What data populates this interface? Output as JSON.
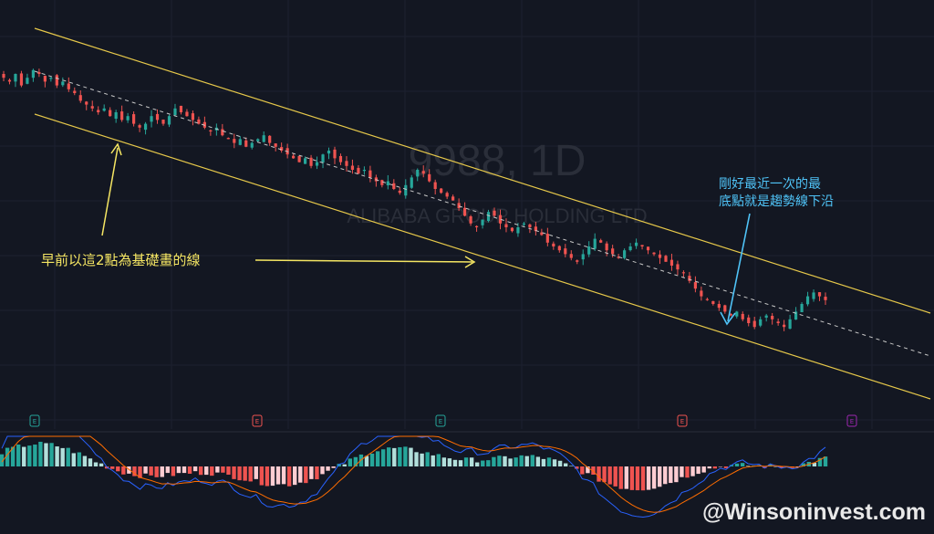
{
  "watermark": {
    "symbol": "9988, 1D",
    "company": "ALIBABA GROUP HOLDING LTD"
  },
  "annotations": {
    "left_text": "早前以這2點為基礎畫的線",
    "right_text_line1": "剛好最近一次的最",
    "right_text_line2": "底點就是趨勢線下沿"
  },
  "brand": "@Winsoninvest.com",
  "event_markers": [
    {
      "label": "E",
      "color": "#26a69a"
    },
    {
      "label": "E",
      "color": "#ef5350"
    },
    {
      "label": "E",
      "color": "#26a69a"
    },
    {
      "label": "E",
      "color": "#ef5350"
    },
    {
      "label": "E",
      "color": "#9c27b0"
    }
  ],
  "colors": {
    "background": "#131722",
    "up": "#26a69a",
    "down": "#ef5350",
    "channel": "#e6c84a",
    "midline": "#c8c8c8",
    "callout_left": "#f5e663",
    "callout_right": "#4fc3f7",
    "macd_line": "#2962ff",
    "signal_line": "#ff6d00"
  },
  "chart_data": {
    "type": "candlestick",
    "symbol": "9988",
    "interval": "1D",
    "close_trend": [
      94,
      93,
      95,
      92,
      94,
      96,
      95,
      93,
      94,
      92,
      93,
      91,
      90,
      88,
      87,
      86,
      85,
      86,
      84,
      85,
      83,
      84,
      82,
      81,
      82,
      84,
      83,
      82,
      84,
      86,
      85,
      84,
      83,
      82,
      81,
      80,
      81,
      79,
      78,
      77,
      78,
      76,
      77,
      78,
      79,
      77,
      76,
      75,
      74,
      73,
      72,
      73,
      71,
      72,
      74,
      75,
      73,
      72,
      71,
      70,
      69,
      70,
      68,
      67,
      66,
      67,
      65,
      64,
      66,
      68,
      70,
      69,
      67,
      65,
      64,
      63,
      62,
      60,
      58,
      56,
      55,
      57,
      59,
      58,
      56,
      55,
      54,
      55,
      56,
      55,
      54,
      53,
      51,
      50,
      49,
      48,
      47,
      46,
      48,
      50,
      52,
      51,
      49,
      48,
      47,
      49,
      50,
      51,
      50,
      49,
      48,
      47,
      46,
      45,
      44,
      43,
      41,
      39,
      37,
      36,
      35,
      34,
      33,
      32,
      33,
      31,
      30,
      29,
      31,
      32,
      31,
      30,
      29,
      31,
      33,
      35,
      37,
      38,
      37,
      36
    ],
    "macd_histogram_note": "MACD oscillator pane shown below price",
    "channel_lines": [
      "upper",
      "middle",
      "lower"
    ]
  }
}
